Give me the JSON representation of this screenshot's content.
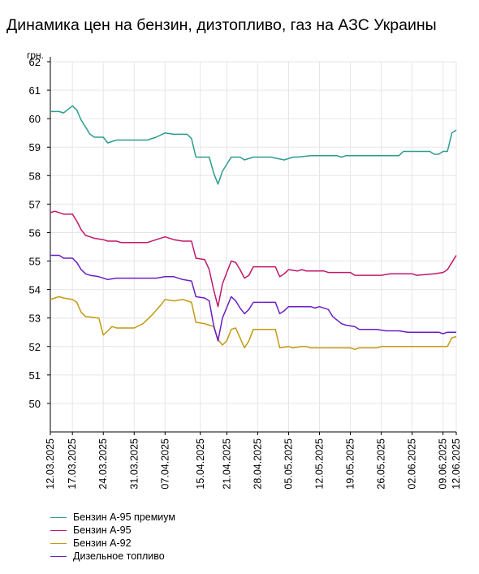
{
  "title": "Динамика цен на бензин, дизтопливо, газ на АЗС Украины",
  "chart_data": {
    "type": "line",
    "ylabel": "грн.",
    "ylim": [
      49,
      62
    ],
    "yticks": [
      50,
      51,
      52,
      53,
      54,
      55,
      56,
      57,
      58,
      59,
      60,
      61,
      62
    ],
    "x_range": [
      "2025-03-12",
      "2025-06-12"
    ],
    "xticks": [
      "12.03.2025",
      "17.03.2025",
      "24.03.2025",
      "31.03.2025",
      "07.04.2025",
      "15.04.2025",
      "21.04.2025",
      "28.04.2025",
      "05.05.2025",
      "12.05.2025",
      "19.05.2025",
      "26.05.2025",
      "02.06.2025",
      "09.06.2025",
      "12.06.2025"
    ],
    "grid": true,
    "legend_position": "bottom-left",
    "series": [
      {
        "name": "Бензин А-95 премиум",
        "color": "#2a9d8f",
        "points": [
          [
            "2025-03-12",
            60.25
          ],
          [
            "2025-03-14",
            60.25
          ],
          [
            "2025-03-15",
            60.2
          ],
          [
            "2025-03-17",
            60.45
          ],
          [
            "2025-03-18",
            60.3
          ],
          [
            "2025-03-19",
            59.95
          ],
          [
            "2025-03-20",
            59.7
          ],
          [
            "2025-03-21",
            59.45
          ],
          [
            "2025-03-22",
            59.35
          ],
          [
            "2025-03-24",
            59.35
          ],
          [
            "2025-03-25",
            59.15
          ],
          [
            "2025-03-27",
            59.25
          ],
          [
            "2025-04-03",
            59.25
          ],
          [
            "2025-04-05",
            59.35
          ],
          [
            "2025-04-07",
            59.5
          ],
          [
            "2025-04-09",
            59.45
          ],
          [
            "2025-04-12",
            59.45
          ],
          [
            "2025-04-13",
            59.3
          ],
          [
            "2025-04-14",
            58.65
          ],
          [
            "2025-04-15",
            58.65
          ],
          [
            "2025-04-17",
            58.65
          ],
          [
            "2025-04-18",
            58.1
          ],
          [
            "2025-04-19",
            57.7
          ],
          [
            "2025-04-20",
            58.15
          ],
          [
            "2025-04-22",
            58.65
          ],
          [
            "2025-04-24",
            58.65
          ],
          [
            "2025-04-25",
            58.55
          ],
          [
            "2025-04-27",
            58.65
          ],
          [
            "2025-05-01",
            58.65
          ],
          [
            "2025-05-04",
            58.55
          ],
          [
            "2025-05-06",
            58.65
          ],
          [
            "2025-05-07",
            58.65
          ],
          [
            "2025-05-10",
            58.7
          ],
          [
            "2025-05-16",
            58.7
          ],
          [
            "2025-05-17",
            58.65
          ],
          [
            "2025-05-18",
            58.7
          ],
          [
            "2025-05-30",
            58.7
          ],
          [
            "2025-05-31",
            58.85
          ],
          [
            "2025-06-06",
            58.85
          ],
          [
            "2025-06-07",
            58.75
          ],
          [
            "2025-06-08",
            58.75
          ],
          [
            "2025-06-09",
            58.85
          ],
          [
            "2025-06-10",
            58.85
          ],
          [
            "2025-06-11",
            59.5
          ],
          [
            "2025-06-12",
            59.6
          ]
        ]
      },
      {
        "name": "Бензин А-95",
        "color": "#c0186a",
        "points": [
          [
            "2025-03-12",
            56.7
          ],
          [
            "2025-03-13",
            56.75
          ],
          [
            "2025-03-15",
            56.65
          ],
          [
            "2025-03-17",
            56.65
          ],
          [
            "2025-03-18",
            56.4
          ],
          [
            "2025-03-19",
            56.1
          ],
          [
            "2025-03-20",
            55.9
          ],
          [
            "2025-03-21",
            55.85
          ],
          [
            "2025-03-22",
            55.8
          ],
          [
            "2025-03-24",
            55.75
          ],
          [
            "2025-03-25",
            55.7
          ],
          [
            "2025-03-27",
            55.7
          ],
          [
            "2025-03-28",
            55.65
          ],
          [
            "2025-04-03",
            55.65
          ],
          [
            "2025-04-05",
            55.75
          ],
          [
            "2025-04-07",
            55.85
          ],
          [
            "2025-04-09",
            55.75
          ],
          [
            "2025-04-11",
            55.7
          ],
          [
            "2025-04-13",
            55.7
          ],
          [
            "2025-04-14",
            55.1
          ],
          [
            "2025-04-16",
            55.05
          ],
          [
            "2025-04-17",
            54.7
          ],
          [
            "2025-04-18",
            54.0
          ],
          [
            "2025-04-19",
            53.4
          ],
          [
            "2025-04-20",
            54.2
          ],
          [
            "2025-04-22",
            55.0
          ],
          [
            "2025-04-23",
            54.95
          ],
          [
            "2025-04-24",
            54.7
          ],
          [
            "2025-04-25",
            54.4
          ],
          [
            "2025-04-26",
            54.5
          ],
          [
            "2025-04-27",
            54.8
          ],
          [
            "2025-04-29",
            54.8
          ],
          [
            "2025-05-02",
            54.8
          ],
          [
            "2025-05-03",
            54.45
          ],
          [
            "2025-05-04",
            54.55
          ],
          [
            "2025-05-05",
            54.7
          ],
          [
            "2025-05-07",
            54.65
          ],
          [
            "2025-05-08",
            54.7
          ],
          [
            "2025-05-09",
            54.65
          ],
          [
            "2025-05-13",
            54.65
          ],
          [
            "2025-05-14",
            54.6
          ],
          [
            "2025-05-19",
            54.6
          ],
          [
            "2025-05-20",
            54.5
          ],
          [
            "2025-05-26",
            54.5
          ],
          [
            "2025-05-28",
            54.55
          ],
          [
            "2025-06-02",
            54.55
          ],
          [
            "2025-06-03",
            54.5
          ],
          [
            "2025-06-07",
            54.55
          ],
          [
            "2025-06-09",
            54.6
          ],
          [
            "2025-06-10",
            54.7
          ],
          [
            "2025-06-11",
            54.95
          ],
          [
            "2025-06-12",
            55.2
          ]
        ]
      },
      {
        "name": "Бензин А-92",
        "color": "#c49a12",
        "points": [
          [
            "2025-03-12",
            53.65
          ],
          [
            "2025-03-14",
            53.75
          ],
          [
            "2025-03-15",
            53.7
          ],
          [
            "2025-03-17",
            53.65
          ],
          [
            "2025-03-18",
            53.55
          ],
          [
            "2025-03-19",
            53.2
          ],
          [
            "2025-03-20",
            53.05
          ],
          [
            "2025-03-23",
            53.0
          ],
          [
            "2025-03-24",
            52.4
          ],
          [
            "2025-03-25",
            52.55
          ],
          [
            "2025-03-26",
            52.7
          ],
          [
            "2025-03-27",
            52.65
          ],
          [
            "2025-03-31",
            52.65
          ],
          [
            "2025-04-02",
            52.8
          ],
          [
            "2025-04-04",
            53.1
          ],
          [
            "2025-04-06",
            53.45
          ],
          [
            "2025-04-07",
            53.65
          ],
          [
            "2025-04-09",
            53.6
          ],
          [
            "2025-04-11",
            53.65
          ],
          [
            "2025-04-13",
            53.55
          ],
          [
            "2025-04-14",
            52.85
          ],
          [
            "2025-04-16",
            52.8
          ],
          [
            "2025-04-17",
            52.75
          ],
          [
            "2025-04-18",
            52.7
          ],
          [
            "2025-04-19",
            52.25
          ],
          [
            "2025-04-20",
            52.05
          ],
          [
            "2025-04-21",
            52.2
          ],
          [
            "2025-04-22",
            52.6
          ],
          [
            "2025-04-23",
            52.65
          ],
          [
            "2025-04-24",
            52.3
          ],
          [
            "2025-04-25",
            51.95
          ],
          [
            "2025-04-26",
            52.2
          ],
          [
            "2025-04-27",
            52.6
          ],
          [
            "2025-05-02",
            52.6
          ],
          [
            "2025-05-03",
            51.95
          ],
          [
            "2025-05-05",
            52.0
          ],
          [
            "2025-05-06",
            51.95
          ],
          [
            "2025-05-08",
            52.0
          ],
          [
            "2025-05-09",
            52.0
          ],
          [
            "2025-05-10",
            51.95
          ],
          [
            "2025-05-19",
            51.95
          ],
          [
            "2025-05-20",
            51.9
          ],
          [
            "2025-05-21",
            51.95
          ],
          [
            "2025-05-25",
            51.95
          ],
          [
            "2025-05-26",
            52.0
          ],
          [
            "2025-06-10",
            52.0
          ],
          [
            "2025-06-11",
            52.3
          ],
          [
            "2025-06-12",
            52.35
          ]
        ]
      },
      {
        "name": "Дизельное топливо",
        "color": "#6a1fc2",
        "points": [
          [
            "2025-03-12",
            55.2
          ],
          [
            "2025-03-14",
            55.2
          ],
          [
            "2025-03-15",
            55.1
          ],
          [
            "2025-03-17",
            55.1
          ],
          [
            "2025-03-18",
            54.95
          ],
          [
            "2025-03-19",
            54.7
          ],
          [
            "2025-03-20",
            54.55
          ],
          [
            "2025-03-21",
            54.5
          ],
          [
            "2025-03-23",
            54.45
          ],
          [
            "2025-03-24",
            54.4
          ],
          [
            "2025-03-25",
            54.35
          ],
          [
            "2025-03-27",
            54.4
          ],
          [
            "2025-04-05",
            54.4
          ],
          [
            "2025-04-07",
            54.45
          ],
          [
            "2025-04-09",
            54.45
          ],
          [
            "2025-04-11",
            54.35
          ],
          [
            "2025-04-13",
            54.3
          ],
          [
            "2025-04-14",
            53.75
          ],
          [
            "2025-04-16",
            53.7
          ],
          [
            "2025-04-17",
            53.6
          ],
          [
            "2025-04-18",
            52.75
          ],
          [
            "2025-04-19",
            52.2
          ],
          [
            "2025-04-20",
            53.0
          ],
          [
            "2025-04-22",
            53.75
          ],
          [
            "2025-04-23",
            53.6
          ],
          [
            "2025-04-24",
            53.35
          ],
          [
            "2025-04-25",
            53.15
          ],
          [
            "2025-04-26",
            53.3
          ],
          [
            "2025-04-27",
            53.55
          ],
          [
            "2025-05-02",
            53.55
          ],
          [
            "2025-05-03",
            53.15
          ],
          [
            "2025-05-04",
            53.25
          ],
          [
            "2025-05-05",
            53.4
          ],
          [
            "2025-05-10",
            53.4
          ],
          [
            "2025-05-11",
            53.35
          ],
          [
            "2025-05-12",
            53.4
          ],
          [
            "2025-05-14",
            53.3
          ],
          [
            "2025-05-15",
            53.05
          ],
          [
            "2025-05-17",
            52.8
          ],
          [
            "2025-05-18",
            52.75
          ],
          [
            "2025-05-20",
            52.7
          ],
          [
            "2025-05-21",
            52.6
          ],
          [
            "2025-05-25",
            52.6
          ],
          [
            "2025-05-27",
            52.55
          ],
          [
            "2025-05-30",
            52.55
          ],
          [
            "2025-06-01",
            52.5
          ],
          [
            "2025-06-08",
            52.5
          ],
          [
            "2025-06-09",
            52.45
          ],
          [
            "2025-06-10",
            52.5
          ],
          [
            "2025-06-12",
            52.5
          ]
        ]
      }
    ]
  }
}
